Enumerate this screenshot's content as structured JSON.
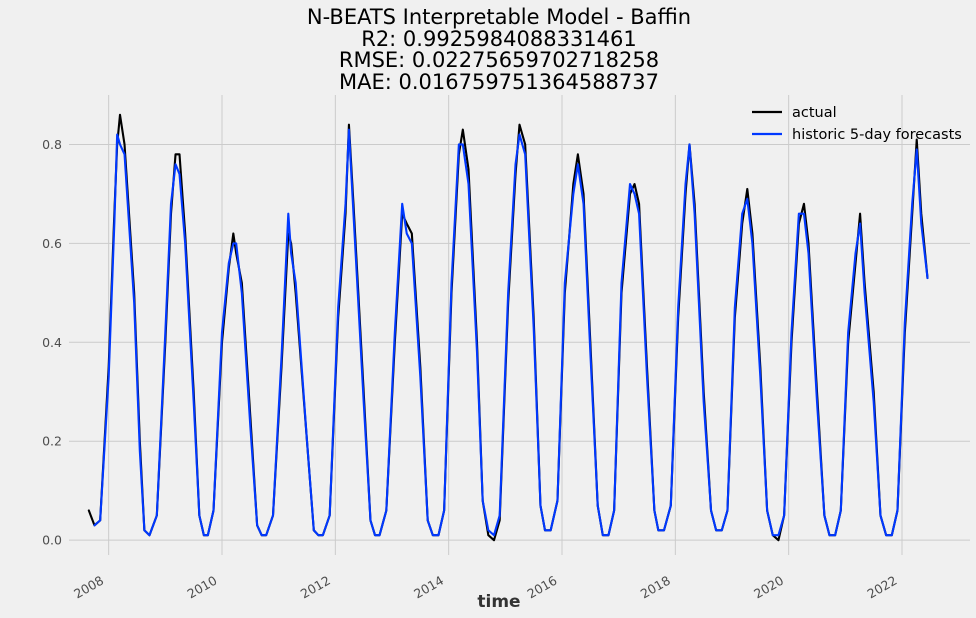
{
  "chart_data": {
    "type": "line",
    "title_lines": [
      "N-BEATS Interpretable Model - Baffin",
      "R2: 0.9925984088331461",
      "RMSE: 0.02275659702718258",
      "MAE: 0.016759751364588737"
    ],
    "xlabel": "time",
    "ylabel": "",
    "xlim": [
      2007.3,
      2023.2
    ],
    "ylim": [
      -0.03,
      0.9
    ],
    "x_ticks": [
      2008,
      2010,
      2012,
      2014,
      2016,
      2018,
      2020,
      2022
    ],
    "x_tick_labels": [
      "2008",
      "2010",
      "2012",
      "2014",
      "2016",
      "2018",
      "2020",
      "2022"
    ],
    "y_ticks": [
      0.0,
      0.2,
      0.4,
      0.6,
      0.8
    ],
    "y_tick_labels": [
      "0.0",
      "0.2",
      "0.4",
      "0.6",
      "0.8"
    ],
    "grid": true,
    "legend_position": "top-right",
    "series": [
      {
        "name": "actual",
        "color": "#000000",
        "start": 2007.65,
        "x": [
          2007.65,
          2007.75,
          2007.85,
          2008.0,
          2008.1,
          2008.15,
          2008.2,
          2008.28,
          2008.45,
          2008.55,
          2008.63,
          2008.72,
          2008.85,
          2009.0,
          2009.1,
          2009.18,
          2009.25,
          2009.35,
          2009.5,
          2009.6,
          2009.68,
          2009.75,
          2009.85,
          2010.0,
          2010.12,
          2010.2,
          2010.25,
          2010.35,
          2010.5,
          2010.62,
          2010.7,
          2010.78,
          2010.9,
          2011.05,
          2011.17,
          2011.22,
          2011.3,
          2011.5,
          2011.62,
          2011.7,
          2011.78,
          2011.9,
          2012.05,
          2012.18,
          2012.24,
          2012.32,
          2012.5,
          2012.62,
          2012.7,
          2012.78,
          2012.9,
          2013.05,
          2013.18,
          2013.26,
          2013.35,
          2013.5,
          2013.63,
          2013.72,
          2013.82,
          2013.92,
          2014.05,
          2014.18,
          2014.25,
          2014.35,
          2014.5,
          2014.6,
          2014.7,
          2014.8,
          2014.9,
          2015.05,
          2015.18,
          2015.25,
          2015.35,
          2015.5,
          2015.62,
          2015.7,
          2015.8,
          2015.92,
          2016.05,
          2016.2,
          2016.28,
          2016.38,
          2016.5,
          2016.63,
          2016.72,
          2016.82,
          2016.92,
          2017.05,
          2017.2,
          2017.28,
          2017.36,
          2017.5,
          2017.63,
          2017.7,
          2017.8,
          2017.92,
          2018.05,
          2018.18,
          2018.25,
          2018.34,
          2018.5,
          2018.63,
          2018.72,
          2018.82,
          2018.92,
          2019.05,
          2019.18,
          2019.27,
          2019.36,
          2019.5,
          2019.62,
          2019.72,
          2019.82,
          2019.92,
          2020.05,
          2020.18,
          2020.27,
          2020.35,
          2020.5,
          2020.63,
          2020.72,
          2020.82,
          2020.92,
          2021.05,
          2021.18,
          2021.26,
          2021.34,
          2021.5,
          2021.62,
          2021.72,
          2021.82,
          2021.92,
          2022.05,
          2022.18,
          2022.26,
          2022.34,
          2022.45
        ],
        "y": [
          0.06,
          0.03,
          0.04,
          0.35,
          0.66,
          0.8,
          0.86,
          0.8,
          0.5,
          0.2,
          0.02,
          0.01,
          0.05,
          0.4,
          0.66,
          0.78,
          0.78,
          0.62,
          0.3,
          0.05,
          0.01,
          0.01,
          0.06,
          0.4,
          0.55,
          0.62,
          0.58,
          0.52,
          0.25,
          0.03,
          0.01,
          0.01,
          0.05,
          0.35,
          0.62,
          0.6,
          0.5,
          0.2,
          0.02,
          0.01,
          0.01,
          0.05,
          0.45,
          0.66,
          0.84,
          0.68,
          0.3,
          0.04,
          0.01,
          0.01,
          0.06,
          0.4,
          0.66,
          0.64,
          0.62,
          0.35,
          0.04,
          0.01,
          0.01,
          0.06,
          0.5,
          0.78,
          0.83,
          0.75,
          0.4,
          0.08,
          0.01,
          0.0,
          0.04,
          0.48,
          0.74,
          0.84,
          0.8,
          0.45,
          0.07,
          0.02,
          0.02,
          0.08,
          0.5,
          0.72,
          0.78,
          0.7,
          0.4,
          0.07,
          0.01,
          0.01,
          0.06,
          0.5,
          0.7,
          0.72,
          0.68,
          0.35,
          0.06,
          0.02,
          0.02,
          0.07,
          0.45,
          0.7,
          0.8,
          0.68,
          0.3,
          0.06,
          0.02,
          0.02,
          0.06,
          0.45,
          0.64,
          0.71,
          0.62,
          0.35,
          0.06,
          0.01,
          0.0,
          0.05,
          0.4,
          0.64,
          0.68,
          0.6,
          0.3,
          0.05,
          0.01,
          0.01,
          0.06,
          0.4,
          0.56,
          0.66,
          0.52,
          0.3,
          0.05,
          0.01,
          0.01,
          0.06,
          0.42,
          0.66,
          0.81,
          0.66,
          0.53
        ]
      },
      {
        "name": "historic 5-day forecasts",
        "color": "#0038ff",
        "x": [
          2007.75,
          2007.85,
          2008.0,
          2008.1,
          2008.15,
          2008.2,
          2008.28,
          2008.45,
          2008.55,
          2008.63,
          2008.72,
          2008.85,
          2009.0,
          2009.1,
          2009.18,
          2009.25,
          2009.35,
          2009.5,
          2009.6,
          2009.68,
          2009.75,
          2009.85,
          2010.0,
          2010.12,
          2010.2,
          2010.25,
          2010.35,
          2010.5,
          2010.62,
          2010.7,
          2010.78,
          2010.9,
          2011.05,
          2011.17,
          2011.22,
          2011.3,
          2011.5,
          2011.62,
          2011.7,
          2011.78,
          2011.9,
          2012.05,
          2012.18,
          2012.24,
          2012.32,
          2012.5,
          2012.62,
          2012.7,
          2012.78,
          2012.9,
          2013.05,
          2013.18,
          2013.26,
          2013.35,
          2013.5,
          2013.63,
          2013.72,
          2013.82,
          2013.92,
          2014.05,
          2014.18,
          2014.25,
          2014.35,
          2014.5,
          2014.6,
          2014.7,
          2014.8,
          2014.9,
          2015.05,
          2015.18,
          2015.25,
          2015.35,
          2015.5,
          2015.62,
          2015.7,
          2015.8,
          2015.92,
          2016.05,
          2016.2,
          2016.28,
          2016.38,
          2016.5,
          2016.63,
          2016.72,
          2016.82,
          2016.92,
          2017.05,
          2017.2,
          2017.28,
          2017.36,
          2017.5,
          2017.63,
          2017.7,
          2017.8,
          2017.92,
          2018.05,
          2018.18,
          2018.25,
          2018.34,
          2018.5,
          2018.63,
          2018.72,
          2018.82,
          2018.92,
          2019.05,
          2019.18,
          2019.27,
          2019.36,
          2019.5,
          2019.62,
          2019.72,
          2019.82,
          2019.92,
          2020.05,
          2020.18,
          2020.27,
          2020.35,
          2020.5,
          2020.63,
          2020.72,
          2020.82,
          2020.92,
          2021.05,
          2021.18,
          2021.26,
          2021.34,
          2021.5,
          2021.62,
          2021.72,
          2021.82,
          2021.92,
          2022.05,
          2022.18,
          2022.26,
          2022.34,
          2022.45
        ],
        "y": [
          0.03,
          0.04,
          0.33,
          0.64,
          0.82,
          0.8,
          0.78,
          0.48,
          0.18,
          0.02,
          0.01,
          0.05,
          0.42,
          0.68,
          0.76,
          0.74,
          0.6,
          0.28,
          0.05,
          0.01,
          0.01,
          0.06,
          0.42,
          0.56,
          0.6,
          0.6,
          0.5,
          0.23,
          0.03,
          0.01,
          0.01,
          0.05,
          0.37,
          0.66,
          0.58,
          0.52,
          0.2,
          0.02,
          0.01,
          0.01,
          0.05,
          0.47,
          0.68,
          0.83,
          0.66,
          0.28,
          0.04,
          0.01,
          0.01,
          0.06,
          0.42,
          0.68,
          0.62,
          0.6,
          0.33,
          0.04,
          0.01,
          0.01,
          0.06,
          0.52,
          0.8,
          0.8,
          0.72,
          0.38,
          0.08,
          0.02,
          0.01,
          0.05,
          0.5,
          0.76,
          0.82,
          0.78,
          0.43,
          0.07,
          0.02,
          0.02,
          0.08,
          0.52,
          0.7,
          0.76,
          0.68,
          0.38,
          0.07,
          0.01,
          0.01,
          0.06,
          0.52,
          0.72,
          0.7,
          0.66,
          0.33,
          0.06,
          0.02,
          0.02,
          0.07,
          0.47,
          0.72,
          0.8,
          0.66,
          0.28,
          0.06,
          0.02,
          0.02,
          0.06,
          0.47,
          0.66,
          0.69,
          0.6,
          0.33,
          0.06,
          0.01,
          0.01,
          0.05,
          0.42,
          0.66,
          0.66,
          0.58,
          0.28,
          0.05,
          0.01,
          0.01,
          0.06,
          0.42,
          0.58,
          0.64,
          0.5,
          0.28,
          0.05,
          0.01,
          0.01,
          0.06,
          0.44,
          0.68,
          0.79,
          0.64,
          0.53
        ]
      }
    ]
  }
}
